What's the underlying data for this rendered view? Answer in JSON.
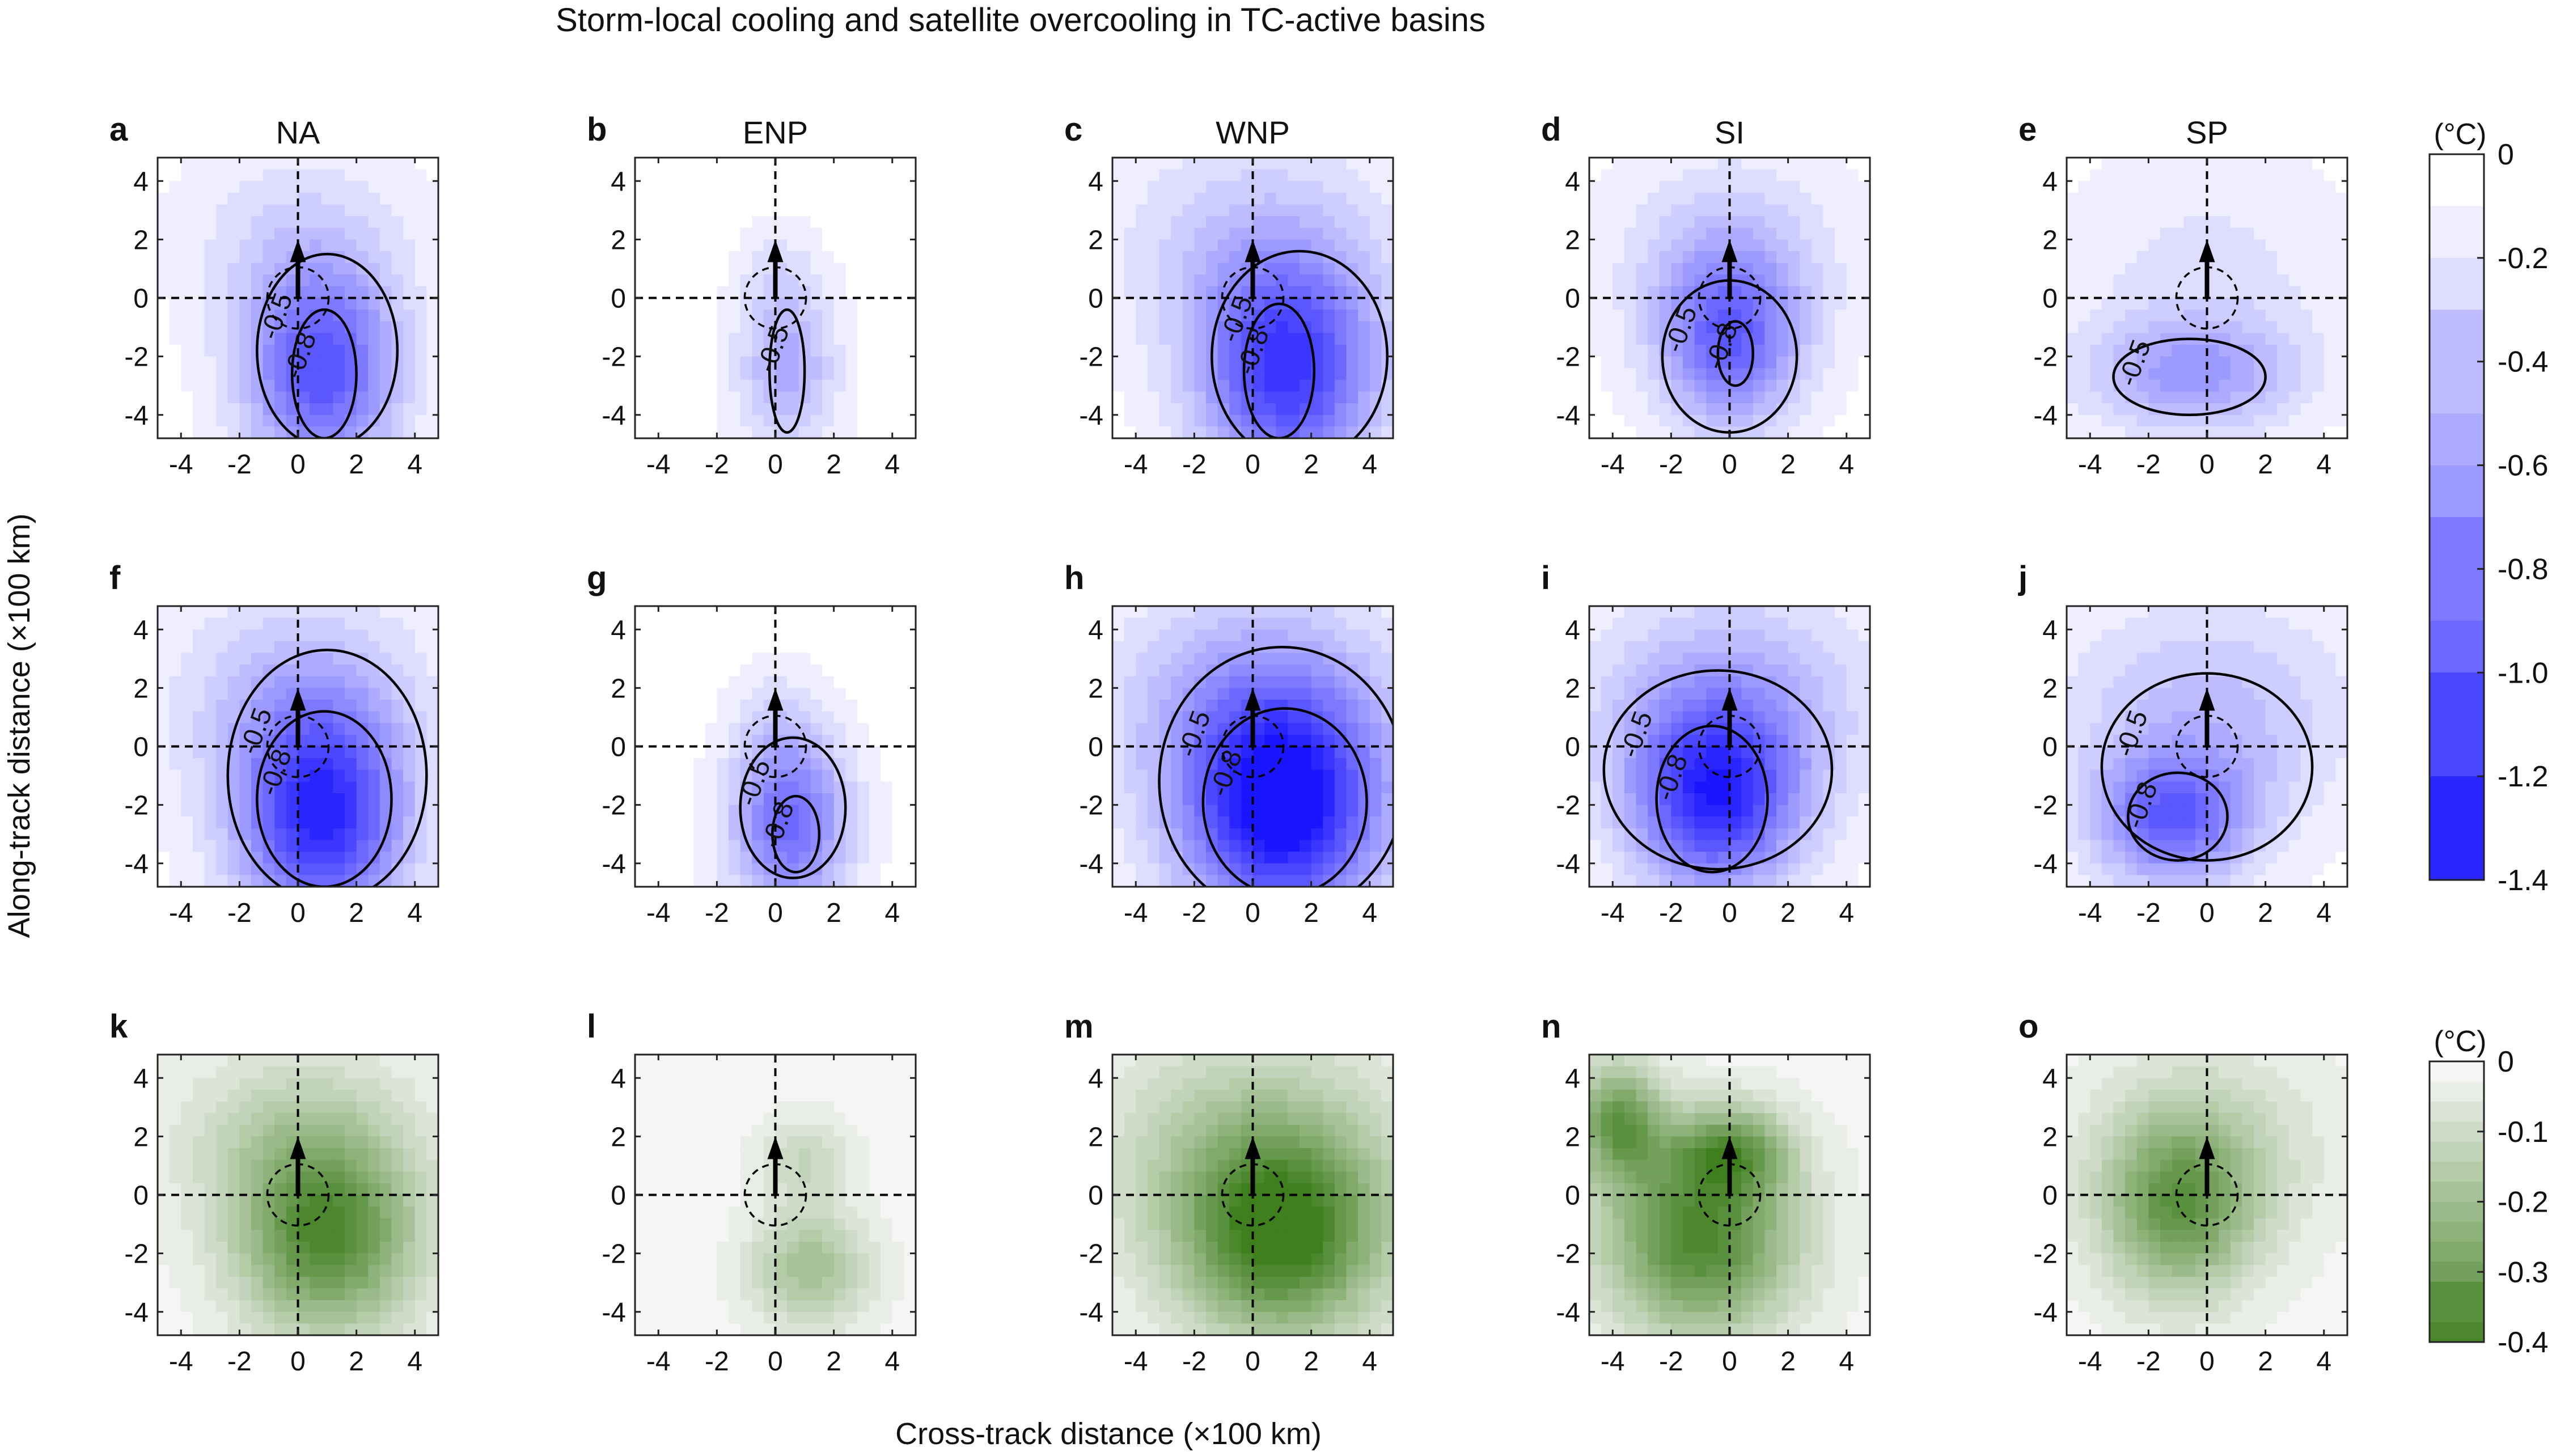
{
  "chart_data": {
    "type": "heatmap",
    "title": "Storm-local cooling and satellite overcooling in TC-active basins",
    "xlabel": "Cross-track distance (×100 km)",
    "ylabel": "Along-track distance (×100 km)",
    "xlim": [
      -4.8,
      4.8
    ],
    "ylim": [
      -4.8,
      4.8
    ],
    "xticks": [
      "-4",
      "-2",
      "0",
      "2",
      "4"
    ],
    "yticks": [
      "4",
      "2",
      "0",
      "-2",
      "-4"
    ],
    "columns": [
      "NA",
      "ENP",
      "WNP",
      "SI",
      "SP"
    ],
    "panel_letters": [
      "a",
      "b",
      "c",
      "d",
      "e",
      "f",
      "g",
      "h",
      "i",
      "j",
      "k",
      "l",
      "m",
      "n",
      "o"
    ],
    "colorbars": [
      {
        "unit": "(°C)",
        "range": [
          -1.4,
          0
        ],
        "ticks": [
          "0",
          "-0.2",
          "-0.4",
          "-0.6",
          "-0.8",
          "-1.0",
          "-1.2",
          "-1.4"
        ],
        "color_low": "#1a14ff",
        "color_high": "#ffffff",
        "rows": [
          0,
          1
        ]
      },
      {
        "unit": "(°C)",
        "range": [
          -0.4,
          0
        ],
        "ticks": [
          "0",
          "-0.1",
          "-0.2",
          "-0.3",
          "-0.4"
        ],
        "color_low": "#3f7f1e",
        "color_high": "#f5f5f5",
        "rows": [
          2
        ]
      }
    ],
    "panels": [
      {
        "letter": "a",
        "basin": "NA",
        "row": 0,
        "colorbar": 0,
        "blobs": [
          {
            "cx": 0.8,
            "cy": -2.5,
            "rx": 2.6,
            "ry": 3.6,
            "amp": -1.0
          },
          {
            "cx": 0,
            "cy": 2.0,
            "rx": 4,
            "ry": 3.5,
            "amp": -0.22
          }
        ],
        "contours": [
          {
            "level": "-0.5",
            "cx": 1.0,
            "cy": -1.8,
            "rx": 2.4,
            "ry": 3.3
          },
          {
            "level": "-0.8",
            "cx": 0.9,
            "cy": -2.6,
            "rx": 1.1,
            "ry": 2.2
          }
        ]
      },
      {
        "letter": "b",
        "basin": "ENP",
        "row": 0,
        "colorbar": 0,
        "blobs": [
          {
            "cx": 0.4,
            "cy": -2.3,
            "rx": 1.7,
            "ry": 3.0,
            "amp": -0.5
          },
          {
            "cx": 0,
            "cy": 1.0,
            "rx": 1.2,
            "ry": 1.6,
            "amp": -0.12
          }
        ],
        "contours": [
          {
            "level": "-0.5",
            "cx": 0.4,
            "cy": -2.5,
            "rx": 0.6,
            "ry": 2.1
          }
        ]
      },
      {
        "letter": "c",
        "basin": "WNP",
        "row": 0,
        "colorbar": 0,
        "blobs": [
          {
            "cx": 1.2,
            "cy": -2.5,
            "rx": 3.0,
            "ry": 3.8,
            "amp": -1.15
          },
          {
            "cx": 0,
            "cy": 1.8,
            "rx": 5,
            "ry": 4,
            "amp": -0.3
          }
        ],
        "contours": [
          {
            "level": "-0.5",
            "cx": 1.6,
            "cy": -2.0,
            "rx": 3.0,
            "ry": 3.6
          },
          {
            "level": "-0.8",
            "cx": 0.9,
            "cy": -2.5,
            "rx": 1.2,
            "ry": 2.3
          }
        ]
      },
      {
        "letter": "d",
        "basin": "SI",
        "row": 0,
        "colorbar": 0,
        "blobs": [
          {
            "cx": 0.0,
            "cy": -1.5,
            "rx": 2.4,
            "ry": 3.0,
            "amp": -0.85
          },
          {
            "cx": 0,
            "cy": 1.5,
            "rx": 4,
            "ry": 3.5,
            "amp": -0.3
          }
        ],
        "contours": [
          {
            "level": "-0.5",
            "cx": 0.0,
            "cy": -2.0,
            "rx": 2.3,
            "ry": 2.6
          },
          {
            "level": "-0.8",
            "cx": 0.2,
            "cy": -1.9,
            "rx": 0.6,
            "ry": 1.1
          }
        ]
      },
      {
        "letter": "e",
        "basin": "SP",
        "row": 0,
        "colorbar": 0,
        "blobs": [
          {
            "cx": -0.5,
            "cy": -2.6,
            "rx": 3.6,
            "ry": 2.0,
            "amp": -0.55
          },
          {
            "cx": 0,
            "cy": 1.0,
            "rx": 5,
            "ry": 4,
            "amp": -0.18
          }
        ],
        "contours": [
          {
            "level": "-0.5",
            "cx": -0.6,
            "cy": -2.7,
            "rx": 2.6,
            "ry": 1.3
          }
        ]
      },
      {
        "letter": "f",
        "basin": "NA",
        "row": 1,
        "colorbar": 0,
        "blobs": [
          {
            "cx": 0.8,
            "cy": -2.5,
            "rx": 2.8,
            "ry": 3.9,
            "amp": -1.2
          },
          {
            "cx": 0,
            "cy": 1.5,
            "rx": 4.5,
            "ry": 4,
            "amp": -0.35
          }
        ],
        "contours": [
          {
            "level": "-0.5",
            "cx": 1.0,
            "cy": -1.0,
            "rx": 3.4,
            "ry": 4.3
          },
          {
            "level": "-0.8",
            "cx": 0.9,
            "cy": -1.8,
            "rx": 2.3,
            "ry": 3.0
          }
        ]
      },
      {
        "letter": "g",
        "basin": "ENP",
        "row": 1,
        "colorbar": 0,
        "blobs": [
          {
            "cx": 0.5,
            "cy": -2.6,
            "rx": 2.0,
            "ry": 3.0,
            "amp": -0.9
          },
          {
            "cx": 0,
            "cy": 1.0,
            "rx": 1.4,
            "ry": 1.8,
            "amp": -0.15
          }
        ],
        "contours": [
          {
            "level": "-0.5",
            "cx": 0.6,
            "cy": -2.1,
            "rx": 1.8,
            "ry": 2.4
          },
          {
            "level": "-0.8",
            "cx": 0.7,
            "cy": -3.0,
            "rx": 0.8,
            "ry": 1.3
          }
        ]
      },
      {
        "letter": "h",
        "basin": "WNP",
        "row": 1,
        "colorbar": 0,
        "blobs": [
          {
            "cx": 1.0,
            "cy": -2.2,
            "rx": 3.4,
            "ry": 4.0,
            "amp": -1.4
          },
          {
            "cx": 0,
            "cy": 1.5,
            "rx": 5,
            "ry": 4,
            "amp": -0.45
          }
        ],
        "contours": [
          {
            "level": "-0.5",
            "cx": 1.0,
            "cy": -1.2,
            "rx": 4.2,
            "ry": 4.6
          },
          {
            "level": "-0.8",
            "cx": 1.1,
            "cy": -1.9,
            "rx": 2.8,
            "ry": 3.2
          }
        ]
      },
      {
        "letter": "i",
        "basin": "SI",
        "row": 1,
        "colorbar": 0,
        "blobs": [
          {
            "cx": -0.5,
            "cy": -1.8,
            "rx": 2.8,
            "ry": 3.2,
            "amp": -1.15
          },
          {
            "cx": 0,
            "cy": 1.5,
            "rx": 5,
            "ry": 4,
            "amp": -0.45
          }
        ],
        "contours": [
          {
            "level": "-0.5",
            "cx": -0.4,
            "cy": -0.8,
            "rx": 3.9,
            "ry": 3.4
          },
          {
            "level": "-0.8",
            "cx": -0.6,
            "cy": -1.8,
            "rx": 1.9,
            "ry": 2.5
          }
        ]
      },
      {
        "letter": "j",
        "basin": "SP",
        "row": 1,
        "colorbar": 0,
        "blobs": [
          {
            "cx": -1.2,
            "cy": -2.5,
            "rx": 2.6,
            "ry": 2.2,
            "amp": -0.85
          },
          {
            "cx": 0,
            "cy": 1.0,
            "rx": 5,
            "ry": 4,
            "amp": -0.4
          }
        ],
        "contours": [
          {
            "level": "-0.5",
            "cx": 0.0,
            "cy": -0.7,
            "rx": 3.6,
            "ry": 3.2
          },
          {
            "level": "-0.8",
            "cx": -1.0,
            "cy": -2.4,
            "rx": 1.7,
            "ry": 1.5
          }
        ]
      },
      {
        "letter": "k",
        "basin": "NA",
        "row": 2,
        "colorbar": 1,
        "blobs": [
          {
            "cx": 1.0,
            "cy": -1.5,
            "rx": 3.0,
            "ry": 3.2,
            "amp": -0.35
          },
          {
            "cx": 0,
            "cy": 2.0,
            "rx": 4,
            "ry": 3,
            "amp": -0.12
          }
        ],
        "contours": []
      },
      {
        "letter": "l",
        "basin": "ENP",
        "row": 2,
        "colorbar": 1,
        "blobs": [
          {
            "cx": 1.2,
            "cy": -2.5,
            "rx": 2.0,
            "ry": 2.0,
            "amp": -0.18
          },
          {
            "cx": 1.0,
            "cy": 1.2,
            "rx": 1.5,
            "ry": 1.5,
            "amp": -0.1
          }
        ],
        "contours": []
      },
      {
        "letter": "m",
        "basin": "WNP",
        "row": 2,
        "colorbar": 1,
        "blobs": [
          {
            "cx": 1.0,
            "cy": -1.5,
            "rx": 3.4,
            "ry": 3.4,
            "amp": -0.37
          },
          {
            "cx": 0,
            "cy": 1.5,
            "rx": 5,
            "ry": 4,
            "amp": -0.15
          }
        ],
        "contours": []
      },
      {
        "letter": "n",
        "basin": "SI",
        "row": 2,
        "colorbar": 1,
        "blobs": [
          {
            "cx": -1.0,
            "cy": -1.5,
            "rx": 3.2,
            "ry": 3.2,
            "amp": -0.37
          },
          {
            "cx": -3.8,
            "cy": 2.5,
            "rx": 1.5,
            "ry": 2.0,
            "amp": -0.3
          },
          {
            "cx": 0.0,
            "cy": 1.5,
            "rx": 2.0,
            "ry": 1.5,
            "amp": -0.25
          }
        ],
        "contours": []
      },
      {
        "letter": "o",
        "basin": "SP",
        "row": 2,
        "colorbar": 1,
        "blobs": [
          {
            "cx": -1.0,
            "cy": -0.5,
            "rx": 2.5,
            "ry": 3.0,
            "amp": -0.27
          },
          {
            "cx": 0,
            "cy": 1.5,
            "rx": 4,
            "ry": 3.5,
            "amp": -0.1
          }
        ],
        "contours": []
      }
    ]
  }
}
